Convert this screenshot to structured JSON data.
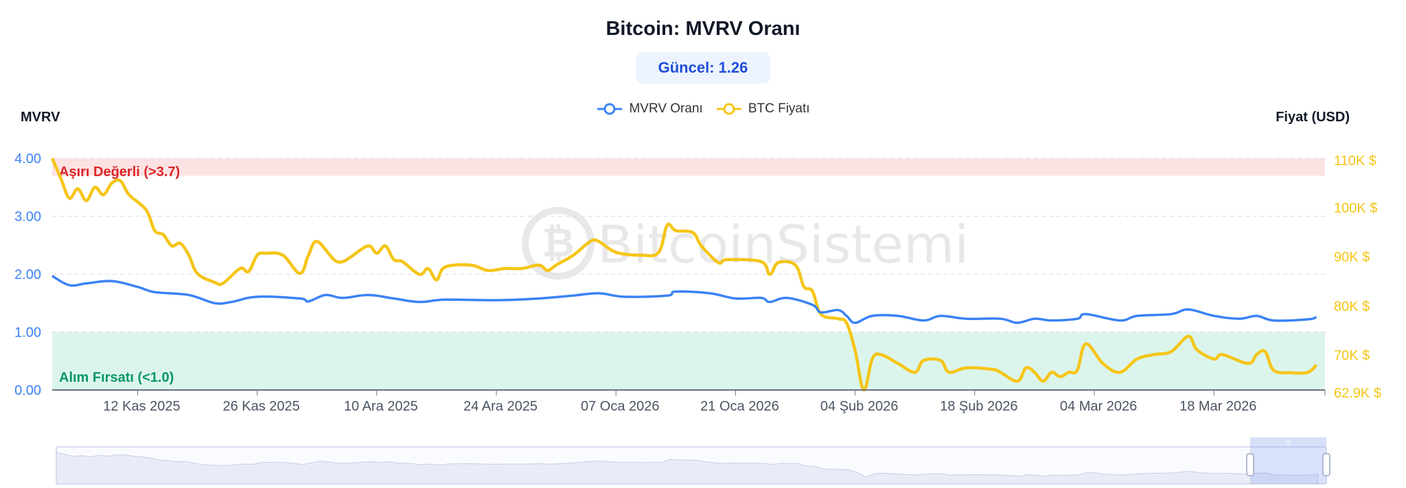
{
  "title": "Bitcoin: MVRV Oranı",
  "badge": {
    "label": "Güncel:",
    "value": "1.26"
  },
  "legend": [
    {
      "name": "MVRV Oranı",
      "color": "#3b82f6"
    },
    {
      "name": "BTC Fiyatı",
      "color": "#f5c518"
    }
  ],
  "watermark": "BitcoinSistemi",
  "chart_data": {
    "type": "line",
    "title": "Bitcoin: MVRV Oranı",
    "x_range": [
      "2025-11-02",
      "2026-03-31"
    ],
    "x_ticks": [
      {
        "date": "2025-11-12",
        "label": "12 Kas 2025"
      },
      {
        "date": "2025-11-26",
        "label": "26 Kas 2025"
      },
      {
        "date": "2025-12-10",
        "label": "10 Ara 2025"
      },
      {
        "date": "2025-12-24",
        "label": "24 Ara 2025"
      },
      {
        "date": "2026-01-07",
        "label": "07 Oca 2026"
      },
      {
        "date": "2026-01-21",
        "label": "21 Oca 2026"
      },
      {
        "date": "2026-02-04",
        "label": "04 Şub 2026"
      },
      {
        "date": "2026-02-18",
        "label": "18 Şub 2026"
      },
      {
        "date": "2026-03-04",
        "label": "04 Mar 2026"
      },
      {
        "date": "2026-03-18",
        "label": "18 Mar 2026"
      }
    ],
    "y_left": {
      "title": "MVRV",
      "range": [
        0,
        4
      ],
      "ticks": [
        {
          "v": 0,
          "label": "0.00"
        },
        {
          "v": 1,
          "label": "1.00"
        },
        {
          "v": 2,
          "label": "2.00"
        },
        {
          "v": 3,
          "label": "3.00"
        },
        {
          "v": 4,
          "label": "4.00"
        }
      ],
      "color": "#3b82f6"
    },
    "y_right": {
      "title": "Fiyat (USD)",
      "range": [
        62.9,
        110
      ],
      "unit": "K $",
      "ticks": [
        {
          "v": 62.9,
          "label": "62.9K $"
        },
        {
          "v": 70,
          "label": "70K $"
        },
        {
          "v": 80,
          "label": "80K $"
        },
        {
          "v": 90,
          "label": "90K $"
        },
        {
          "v": 100,
          "label": "100K $"
        },
        {
          "v": 110,
          "label": "110K $"
        }
      ],
      "color": "#f5c518"
    },
    "grid": true,
    "bands": [
      {
        "label": "Aşırı Değerli (>3.7)",
        "from": 3.7,
        "to": 4.0,
        "fill": "#fde2e4",
        "text_color": "#dc2626"
      },
      {
        "label": "Alım Fırsatı (<1.0)",
        "from": 0,
        "to": 1.0,
        "fill": "#dcf5ec",
        "text_color": "#059669"
      }
    ],
    "series": [
      {
        "name": "MVRV Oranı",
        "axis": "left",
        "color": "#3b82f6",
        "points": [
          [
            "2025-11-02",
            1.97
          ],
          [
            "2025-11-04",
            1.81
          ],
          [
            "2025-11-06",
            1.84
          ],
          [
            "2025-11-09",
            1.88
          ],
          [
            "2025-11-12",
            1.78
          ],
          [
            "2025-11-14",
            1.69
          ],
          [
            "2025-11-18",
            1.64
          ],
          [
            "2025-11-21",
            1.5
          ],
          [
            "2025-11-23",
            1.52
          ],
          [
            "2025-11-26",
            1.61
          ],
          [
            "2025-12-01",
            1.58
          ],
          [
            "2025-12-02",
            1.53
          ],
          [
            "2025-12-04",
            1.64
          ],
          [
            "2025-12-06",
            1.59
          ],
          [
            "2025-12-09",
            1.64
          ],
          [
            "2025-12-12",
            1.58
          ],
          [
            "2025-12-15",
            1.52
          ],
          [
            "2025-12-18",
            1.56
          ],
          [
            "2025-12-24",
            1.55
          ],
          [
            "2025-12-29",
            1.58
          ],
          [
            "2026-01-02",
            1.63
          ],
          [
            "2026-01-05",
            1.67
          ],
          [
            "2026-01-08",
            1.61
          ],
          [
            "2026-01-13",
            1.63
          ],
          [
            "2026-01-14",
            1.7
          ],
          [
            "2026-01-18",
            1.67
          ],
          [
            "2026-01-21",
            1.58
          ],
          [
            "2026-01-24",
            1.59
          ],
          [
            "2026-01-25",
            1.52
          ],
          [
            "2026-01-27",
            1.59
          ],
          [
            "2026-01-30",
            1.47
          ],
          [
            "2026-01-31",
            1.34
          ],
          [
            "2026-02-02",
            1.38
          ],
          [
            "2026-02-03",
            1.28
          ],
          [
            "2026-02-04",
            1.16
          ],
          [
            "2026-02-06",
            1.28
          ],
          [
            "2026-02-09",
            1.28
          ],
          [
            "2026-02-12",
            1.2
          ],
          [
            "2026-02-14",
            1.28
          ],
          [
            "2026-02-17",
            1.23
          ],
          [
            "2026-02-21",
            1.23
          ],
          [
            "2026-02-23",
            1.16
          ],
          [
            "2026-02-25",
            1.23
          ],
          [
            "2026-02-27",
            1.2
          ],
          [
            "2026-03-02",
            1.23
          ],
          [
            "2026-03-03",
            1.31
          ],
          [
            "2026-03-07",
            1.2
          ],
          [
            "2026-03-09",
            1.28
          ],
          [
            "2026-03-13",
            1.31
          ],
          [
            "2026-03-15",
            1.39
          ],
          [
            "2026-03-18",
            1.28
          ],
          [
            "2026-03-21",
            1.23
          ],
          [
            "2026-03-23",
            1.28
          ],
          [
            "2026-03-25",
            1.2
          ],
          [
            "2026-03-29",
            1.22
          ],
          [
            "2026-03-30",
            1.26
          ]
        ]
      },
      {
        "name": "BTC Fiyatı",
        "axis": "right",
        "unit": "K USD",
        "color": "#f5c518",
        "points": [
          [
            "2025-11-02",
            110
          ],
          [
            "2025-11-03",
            106
          ],
          [
            "2025-11-04",
            101.9
          ],
          [
            "2025-11-05",
            103.8
          ],
          [
            "2025-11-06",
            101.4
          ],
          [
            "2025-11-07",
            104.1
          ],
          [
            "2025-11-08",
            102.6
          ],
          [
            "2025-11-09",
            105
          ],
          [
            "2025-11-10",
            105.4
          ],
          [
            "2025-11-11",
            102.6
          ],
          [
            "2025-11-13",
            99.5
          ],
          [
            "2025-11-14",
            95.3
          ],
          [
            "2025-11-15",
            94.5
          ],
          [
            "2025-11-16",
            92.2
          ],
          [
            "2025-11-17",
            92.7
          ],
          [
            "2025-11-18",
            90.3
          ],
          [
            "2025-11-19",
            86.6
          ],
          [
            "2025-11-21",
            84.8
          ],
          [
            "2025-11-22",
            84.6
          ],
          [
            "2025-11-24",
            87.6
          ],
          [
            "2025-11-25",
            87
          ],
          [
            "2025-11-26",
            90.3
          ],
          [
            "2025-11-27",
            90.7
          ],
          [
            "2025-11-29",
            90.3
          ],
          [
            "2025-12-01",
            86.6
          ],
          [
            "2025-12-02",
            90.3
          ],
          [
            "2025-12-03",
            93.1
          ],
          [
            "2025-12-05",
            89.4
          ],
          [
            "2025-12-06",
            89
          ],
          [
            "2025-12-07",
            90
          ],
          [
            "2025-12-09",
            92.2
          ],
          [
            "2025-12-10",
            90.7
          ],
          [
            "2025-12-11",
            92.2
          ],
          [
            "2025-12-12",
            89.4
          ],
          [
            "2025-12-13",
            89
          ],
          [
            "2025-12-15",
            86.4
          ],
          [
            "2025-12-16",
            87.6
          ],
          [
            "2025-12-17",
            85.3
          ],
          [
            "2025-12-18",
            87.9
          ],
          [
            "2025-12-21",
            88.3
          ],
          [
            "2025-12-23",
            87.2
          ],
          [
            "2025-12-25",
            87.6
          ],
          [
            "2025-12-27",
            87.6
          ],
          [
            "2025-12-29",
            88.3
          ],
          [
            "2025-12-30",
            87.2
          ],
          [
            "2025-12-31",
            88.3
          ],
          [
            "2026-01-02",
            90.3
          ],
          [
            "2026-01-04",
            93.1
          ],
          [
            "2026-01-05",
            93.1
          ],
          [
            "2026-01-07",
            90.9
          ],
          [
            "2026-01-10",
            90.3
          ],
          [
            "2026-01-12",
            90.9
          ],
          [
            "2026-01-13",
            96.4
          ],
          [
            "2026-01-14",
            95.3
          ],
          [
            "2026-01-16",
            94.9
          ],
          [
            "2026-01-17",
            92.2
          ],
          [
            "2026-01-19",
            88.8
          ],
          [
            "2026-01-20",
            89.4
          ],
          [
            "2026-01-24",
            89
          ],
          [
            "2026-01-25",
            86.4
          ],
          [
            "2026-01-26",
            88.8
          ],
          [
            "2026-01-28",
            88.3
          ],
          [
            "2026-01-29",
            83.9
          ],
          [
            "2026-01-30",
            83
          ],
          [
            "2026-01-31",
            78.3
          ],
          [
            "2026-02-02",
            77.4
          ],
          [
            "2026-02-03",
            76.5
          ],
          [
            "2026-02-04",
            70.9
          ],
          [
            "2026-02-05",
            62.9
          ],
          [
            "2026-02-06",
            69.2
          ],
          [
            "2026-02-07",
            70.1
          ],
          [
            "2026-02-09",
            68.3
          ],
          [
            "2026-02-11",
            66.5
          ],
          [
            "2026-02-12",
            68.9
          ],
          [
            "2026-02-14",
            68.9
          ],
          [
            "2026-02-15",
            66.5
          ],
          [
            "2026-02-17",
            67.4
          ],
          [
            "2026-02-20",
            67.1
          ],
          [
            "2026-02-21",
            66.5
          ],
          [
            "2026-02-23",
            64.7
          ],
          [
            "2026-02-24",
            67.4
          ],
          [
            "2026-02-25",
            66.5
          ],
          [
            "2026-02-26",
            64.7
          ],
          [
            "2026-02-27",
            66.5
          ],
          [
            "2026-02-28",
            65.6
          ],
          [
            "2026-03-01",
            66.5
          ],
          [
            "2026-03-02",
            66.9
          ],
          [
            "2026-03-03",
            72.3
          ],
          [
            "2026-03-05",
            68.3
          ],
          [
            "2026-03-07",
            66.5
          ],
          [
            "2026-03-09",
            69.2
          ],
          [
            "2026-03-11",
            70.1
          ],
          [
            "2026-03-13",
            70.7
          ],
          [
            "2026-03-15",
            73.8
          ],
          [
            "2026-03-16",
            71.1
          ],
          [
            "2026-03-18",
            69.2
          ],
          [
            "2026-03-19",
            70.1
          ],
          [
            "2026-03-22",
            68.3
          ],
          [
            "2026-03-23",
            70.1
          ],
          [
            "2026-03-24",
            70.7
          ],
          [
            "2026-03-25",
            66.9
          ],
          [
            "2026-03-27",
            66.4
          ],
          [
            "2026-03-29",
            66.5
          ],
          [
            "2026-03-30",
            68
          ]
        ]
      }
    ],
    "zoom_slider": {
      "window_start_fraction": 0.94,
      "window_end_fraction": 1.0
    }
  }
}
